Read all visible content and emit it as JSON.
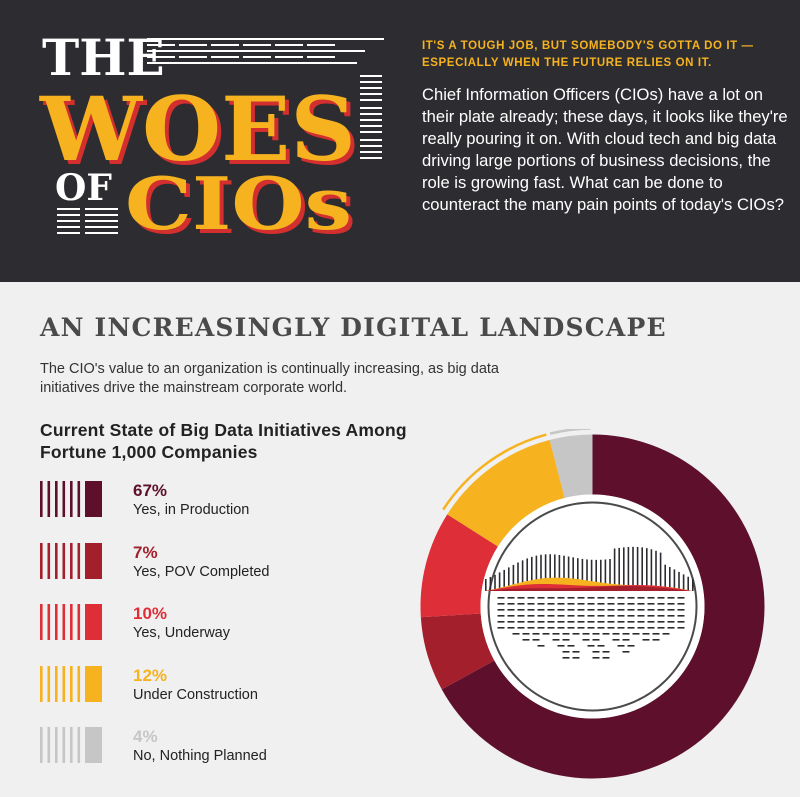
{
  "header": {
    "title_line1": "THE",
    "title_line2": "WOES",
    "title_of": "OF",
    "title_line3": "CIOs",
    "tagline": "IT'S A TOUGH JOB, BUT SOMEBODY'S GOTTA DO IT —ESPECIALLY WHEN THE FUTURE RELIES ON IT.",
    "intro": "Chief Information Officers (CIOs) have a lot on their plate already; these days, it looks like they're really pouring it on. With cloud tech and big data driving large portions of business decisions, the role is growing fast. What can be done to counteract the many pain points of today's CIOs?"
  },
  "section": {
    "title": "AN INCREASINGLY DIGITAL LANDSCAPE",
    "description": "The CIO's value to an organization is continually increasing, as big data initiatives drive the mainstream corporate world."
  },
  "colors": {
    "header_bg": "#2d2d31",
    "title_gold": "#f6b21f",
    "title_red": "#d32f2f",
    "production": "#5e0f2c",
    "pov": "#a31f2c",
    "underway": "#de2f38",
    "construction": "#f6b21f",
    "none": "#c6c6c6"
  },
  "chart_data": {
    "type": "pie",
    "title": "Current State of Big Data Initiatives Among Fortune 1,000 Companies",
    "categories": [
      "Yes, in Production",
      "Yes, POV Completed",
      "Yes, Underway",
      "Under Construction",
      "No, Nothing Planned"
    ],
    "values": [
      67,
      7,
      10,
      12,
      4
    ],
    "value_labels": [
      "67%",
      "7%",
      "10%",
      "12%",
      "4%"
    ],
    "colors": [
      "#5e0f2c",
      "#a31f2c",
      "#de2f38",
      "#f6b21f",
      "#c6c6c6"
    ],
    "legend_position": "left"
  }
}
